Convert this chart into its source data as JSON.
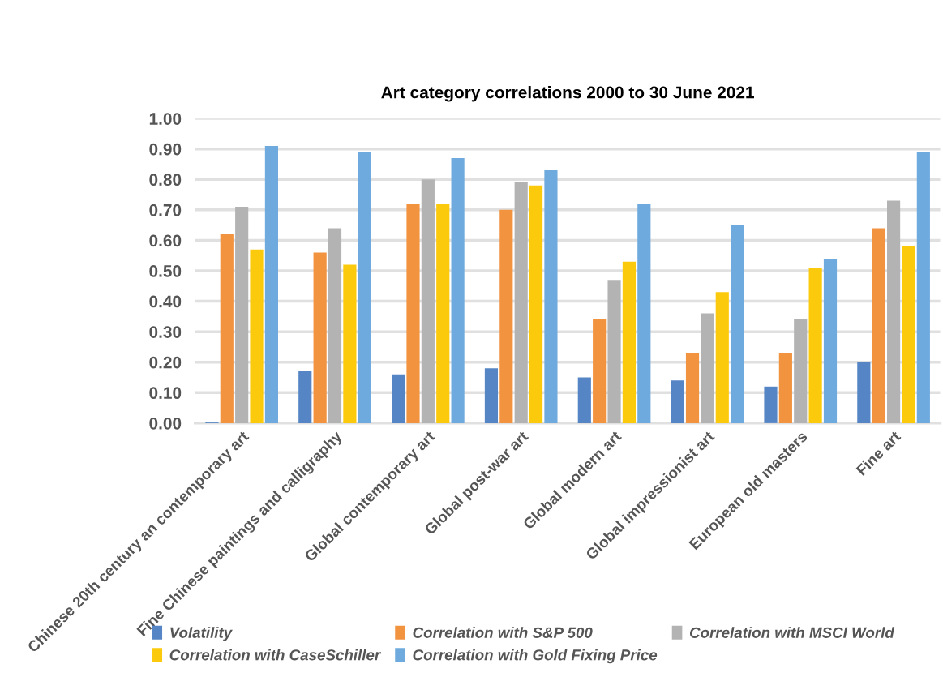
{
  "chart_data": {
    "type": "bar",
    "title": "Art category correlations 2000 to 30 June 2021",
    "categories": [
      "Chinese 20th century an contemporary art",
      "Fine Chinese paintings and calligraphy",
      "Global contemporary art",
      "Global post-war art",
      "Global modern art",
      "Global impressionist art",
      "European old masters",
      "Fine art"
    ],
    "series": [
      {
        "name": "Volatility",
        "color": "#5585c5",
        "values": [
          0.004,
          0.17,
          0.16,
          0.18,
          0.15,
          0.14,
          0.12,
          0.2
        ]
      },
      {
        "name": "Correlation with S&P 500",
        "color": "#f29340",
        "values": [
          0.62,
          0.56,
          0.72,
          0.7,
          0.34,
          0.23,
          0.23,
          0.64
        ]
      },
      {
        "name": "Correlation with MSCI World",
        "color": "#b3b3b3",
        "values": [
          0.71,
          0.64,
          0.8,
          0.79,
          0.47,
          0.36,
          0.34,
          0.73
        ]
      },
      {
        "name": "Correlation with CaseSchiller",
        "color": "#fcca0d",
        "values": [
          0.57,
          0.52,
          0.72,
          0.78,
          0.53,
          0.43,
          0.51,
          0.58
        ]
      },
      {
        "name": "Correlation with Gold Fixing Price",
        "color": "#6eaadd",
        "values": [
          0.91,
          0.89,
          0.87,
          0.83,
          0.72,
          0.65,
          0.54,
          0.89
        ]
      }
    ],
    "ylim": [
      0,
      1.0
    ],
    "yticks": [
      {
        "value": 0,
        "label": "0.00"
      },
      {
        "value": 0.1,
        "label": "0.10"
      },
      {
        "value": 0.2,
        "label": "0.20"
      },
      {
        "value": 0.3,
        "label": "0.30"
      },
      {
        "value": 0.4,
        "label": "0.40"
      },
      {
        "value": 0.5,
        "label": "0.50"
      },
      {
        "value": 0.6,
        "label": "0.60"
      },
      {
        "value": 0.7,
        "label": "0.70"
      },
      {
        "value": 0.8,
        "label": "0.80"
      },
      {
        "value": 0.9,
        "label": "0.90"
      },
      {
        "value": 1.0,
        "label": "1.00"
      }
    ],
    "grid": "y",
    "legend": "bottom"
  }
}
